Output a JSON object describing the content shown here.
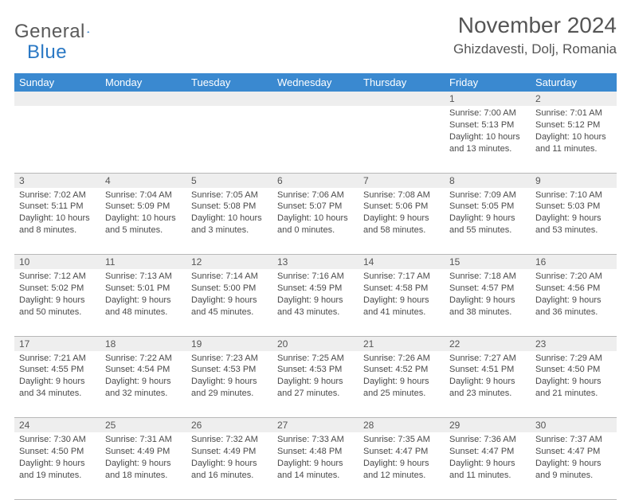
{
  "logo": {
    "text1": "General",
    "text2": "Blue"
  },
  "title": "November 2024",
  "location": "Ghizdavesti, Dolj, Romania",
  "colors": {
    "header_bg": "#3a89d0",
    "header_text": "#ffffff",
    "daynum_bg": "#eeeeee",
    "border": "#b8b8b8",
    "logo_blue": "#2a78c4",
    "text": "#4a4a4a"
  },
  "dayNames": [
    "Sunday",
    "Monday",
    "Tuesday",
    "Wednesday",
    "Thursday",
    "Friday",
    "Saturday"
  ],
  "weeks": [
    [
      null,
      null,
      null,
      null,
      null,
      {
        "n": "1",
        "sr": "7:00 AM",
        "ss": "5:13 PM",
        "dl": "10 hours and 13 minutes."
      },
      {
        "n": "2",
        "sr": "7:01 AM",
        "ss": "5:12 PM",
        "dl": "10 hours and 11 minutes."
      }
    ],
    [
      {
        "n": "3",
        "sr": "7:02 AM",
        "ss": "5:11 PM",
        "dl": "10 hours and 8 minutes."
      },
      {
        "n": "4",
        "sr": "7:04 AM",
        "ss": "5:09 PM",
        "dl": "10 hours and 5 minutes."
      },
      {
        "n": "5",
        "sr": "7:05 AM",
        "ss": "5:08 PM",
        "dl": "10 hours and 3 minutes."
      },
      {
        "n": "6",
        "sr": "7:06 AM",
        "ss": "5:07 PM",
        "dl": "10 hours and 0 minutes."
      },
      {
        "n": "7",
        "sr": "7:08 AM",
        "ss": "5:06 PM",
        "dl": "9 hours and 58 minutes."
      },
      {
        "n": "8",
        "sr": "7:09 AM",
        "ss": "5:05 PM",
        "dl": "9 hours and 55 minutes."
      },
      {
        "n": "9",
        "sr": "7:10 AM",
        "ss": "5:03 PM",
        "dl": "9 hours and 53 minutes."
      }
    ],
    [
      {
        "n": "10",
        "sr": "7:12 AM",
        "ss": "5:02 PM",
        "dl": "9 hours and 50 minutes."
      },
      {
        "n": "11",
        "sr": "7:13 AM",
        "ss": "5:01 PM",
        "dl": "9 hours and 48 minutes."
      },
      {
        "n": "12",
        "sr": "7:14 AM",
        "ss": "5:00 PM",
        "dl": "9 hours and 45 minutes."
      },
      {
        "n": "13",
        "sr": "7:16 AM",
        "ss": "4:59 PM",
        "dl": "9 hours and 43 minutes."
      },
      {
        "n": "14",
        "sr": "7:17 AM",
        "ss": "4:58 PM",
        "dl": "9 hours and 41 minutes."
      },
      {
        "n": "15",
        "sr": "7:18 AM",
        "ss": "4:57 PM",
        "dl": "9 hours and 38 minutes."
      },
      {
        "n": "16",
        "sr": "7:20 AM",
        "ss": "4:56 PM",
        "dl": "9 hours and 36 minutes."
      }
    ],
    [
      {
        "n": "17",
        "sr": "7:21 AM",
        "ss": "4:55 PM",
        "dl": "9 hours and 34 minutes."
      },
      {
        "n": "18",
        "sr": "7:22 AM",
        "ss": "4:54 PM",
        "dl": "9 hours and 32 minutes."
      },
      {
        "n": "19",
        "sr": "7:23 AM",
        "ss": "4:53 PM",
        "dl": "9 hours and 29 minutes."
      },
      {
        "n": "20",
        "sr": "7:25 AM",
        "ss": "4:53 PM",
        "dl": "9 hours and 27 minutes."
      },
      {
        "n": "21",
        "sr": "7:26 AM",
        "ss": "4:52 PM",
        "dl": "9 hours and 25 minutes."
      },
      {
        "n": "22",
        "sr": "7:27 AM",
        "ss": "4:51 PM",
        "dl": "9 hours and 23 minutes."
      },
      {
        "n": "23",
        "sr": "7:29 AM",
        "ss": "4:50 PM",
        "dl": "9 hours and 21 minutes."
      }
    ],
    [
      {
        "n": "24",
        "sr": "7:30 AM",
        "ss": "4:50 PM",
        "dl": "9 hours and 19 minutes."
      },
      {
        "n": "25",
        "sr": "7:31 AM",
        "ss": "4:49 PM",
        "dl": "9 hours and 18 minutes."
      },
      {
        "n": "26",
        "sr": "7:32 AM",
        "ss": "4:49 PM",
        "dl": "9 hours and 16 minutes."
      },
      {
        "n": "27",
        "sr": "7:33 AM",
        "ss": "4:48 PM",
        "dl": "9 hours and 14 minutes."
      },
      {
        "n": "28",
        "sr": "7:35 AM",
        "ss": "4:47 PM",
        "dl": "9 hours and 12 minutes."
      },
      {
        "n": "29",
        "sr": "7:36 AM",
        "ss": "4:47 PM",
        "dl": "9 hours and 11 minutes."
      },
      {
        "n": "30",
        "sr": "7:37 AM",
        "ss": "4:47 PM",
        "dl": "9 hours and 9 minutes."
      }
    ]
  ],
  "labels": {
    "sunrise": "Sunrise: ",
    "sunset": "Sunset: ",
    "daylight": "Daylight: "
  }
}
